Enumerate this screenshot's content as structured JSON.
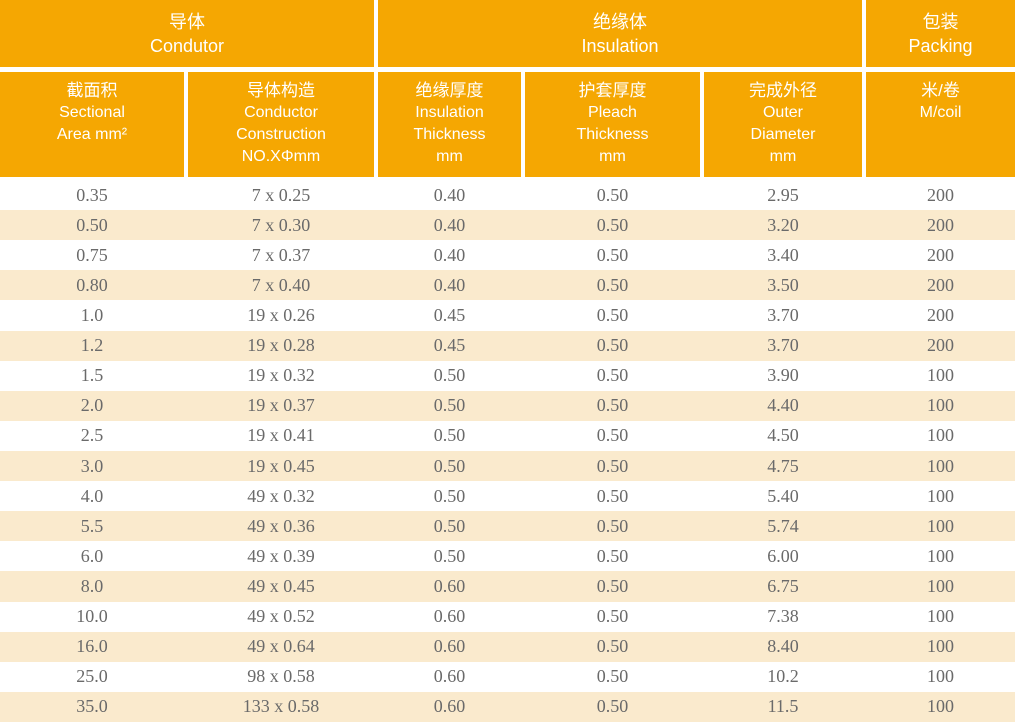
{
  "table": {
    "groups": [
      {
        "zh": "导体",
        "en": "Condutor"
      },
      {
        "zh": "绝缘体",
        "en": "Insulation"
      },
      {
        "zh": "包装",
        "en": "Packing"
      }
    ],
    "columns": [
      {
        "lines": [
          "截面积",
          "Sectional",
          "Area mm²"
        ]
      },
      {
        "lines": [
          "导体构造",
          "Conductor",
          "Construction",
          "NO.XΦmm"
        ]
      },
      {
        "lines": [
          "绝缘厚度",
          "Insulation",
          "Thickness",
          "mm"
        ]
      },
      {
        "lines": [
          "护套厚度",
          "Pleach",
          "Thickness",
          "mm"
        ]
      },
      {
        "lines": [
          "完成外径",
          "Outer",
          "Diameter",
          "mm"
        ]
      },
      {
        "lines": [
          "米/卷",
          "M/coil"
        ]
      }
    ],
    "rows": [
      [
        "0.35",
        "7 x 0.25",
        "0.40",
        "0.50",
        "2.95",
        "200"
      ],
      [
        "0.50",
        "7 x 0.30",
        "0.40",
        "0.50",
        "3.20",
        "200"
      ],
      [
        "0.75",
        "7 x 0.37",
        "0.40",
        "0.50",
        "3.40",
        "200"
      ],
      [
        "0.80",
        "7 x 0.40",
        "0.40",
        "0.50",
        "3.50",
        "200"
      ],
      [
        "1.0",
        "19 x 0.26",
        "0.45",
        "0.50",
        "3.70",
        "200"
      ],
      [
        "1.2",
        "19 x 0.28",
        "0.45",
        "0.50",
        "3.70",
        "200"
      ],
      [
        "1.5",
        "19 x 0.32",
        "0.50",
        "0.50",
        "3.90",
        "100"
      ],
      [
        "2.0",
        "19 x 0.37",
        "0.50",
        "0.50",
        "4.40",
        "100"
      ],
      [
        "2.5",
        "19 x 0.41",
        "0.50",
        "0.50",
        "4.50",
        "100"
      ],
      [
        "3.0",
        "19 x 0.45",
        "0.50",
        "0.50",
        "4.75",
        "100"
      ],
      [
        "4.0",
        "49 x 0.32",
        "0.50",
        "0.50",
        "5.40",
        "100"
      ],
      [
        "5.5",
        "49 x 0.36",
        "0.50",
        "0.50",
        "5.74",
        "100"
      ],
      [
        "6.0",
        "49 x 0.39",
        "0.50",
        "0.50",
        "6.00",
        "100"
      ],
      [
        "8.0",
        "49 x 0.45",
        "0.60",
        "0.50",
        "6.75",
        "100"
      ],
      [
        "10.0",
        "49 x 0.52",
        "0.60",
        "0.50",
        "7.38",
        "100"
      ],
      [
        "16.0",
        "49 x 0.64",
        "0.60",
        "0.50",
        "8.40",
        "100"
      ],
      [
        "25.0",
        "98 x 0.58",
        "0.60",
        "0.50",
        "10.2",
        "100"
      ],
      [
        "35.0",
        "133 x 0.58",
        "0.60",
        "0.50",
        "11.5",
        "100"
      ]
    ],
    "colors": {
      "header_bg": "#F5A702",
      "header_text": "#FFFFFF",
      "row_bg": "#FFFFFF",
      "row_alt_bg": "#FAEACD",
      "data_text": "#6A6A6A"
    }
  }
}
